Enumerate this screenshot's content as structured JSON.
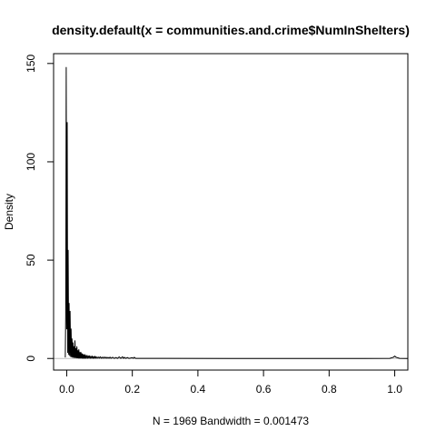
{
  "chart_data": {
    "type": "line",
    "title": "density.default(x = communities.and.crime$NumInShelters)",
    "xlabel": "N = 1969   Bandwidth = 0.001473",
    "ylabel": "Density",
    "xlim": [
      -0.04,
      1.04
    ],
    "ylim": [
      -5.9,
      155.0
    ],
    "x_ticks": [
      {
        "value": 0.0,
        "label": "0.0"
      },
      {
        "value": 0.2,
        "label": "0.2"
      },
      {
        "value": 0.4,
        "label": "0.4"
      },
      {
        "value": 0.6,
        "label": "0.6"
      },
      {
        "value": 0.8,
        "label": "0.8"
      },
      {
        "value": 1.0,
        "label": "1.0"
      }
    ],
    "y_ticks": [
      {
        "value": 0,
        "label": "0"
      },
      {
        "value": 50,
        "label": "50"
      },
      {
        "value": 100,
        "label": "100"
      },
      {
        "value": 150,
        "label": "150"
      }
    ],
    "baseline": 0,
    "baseline_color": "#bebebe",
    "line_color": "#000000",
    "grid": false,
    "legend": "none",
    "series": [
      {
        "x": [
          -0.0044,
          -0.003,
          -0.0015,
          0.0,
          0.0015,
          0.003,
          0.0044,
          0.006,
          0.0073,
          0.009,
          0.0103,
          0.012,
          0.0133,
          0.015,
          0.0162,
          0.018,
          0.0191,
          0.021,
          0.0221,
          0.024,
          0.025,
          0.027,
          0.028,
          0.03,
          0.031,
          0.033,
          0.034,
          0.036,
          0.037,
          0.039,
          0.04,
          0.042,
          0.043,
          0.045,
          0.046,
          0.048,
          0.049,
          0.051,
          0.052,
          0.054,
          0.055,
          0.057,
          0.058,
          0.06,
          0.062,
          0.064,
          0.066,
          0.068,
          0.07,
          0.072,
          0.074,
          0.076,
          0.078,
          0.08,
          0.082,
          0.084,
          0.086,
          0.088,
          0.09,
          0.093,
          0.096,
          0.099,
          0.102,
          0.105,
          0.108,
          0.111,
          0.114,
          0.117,
          0.12,
          0.123,
          0.126,
          0.129,
          0.132,
          0.135,
          0.14,
          0.145,
          0.15,
          0.155,
          0.16,
          0.165,
          0.17,
          0.173,
          0.176,
          0.18,
          0.185,
          0.19,
          0.2,
          0.203,
          0.206,
          0.21,
          0.3,
          0.5,
          0.7,
          0.9,
          0.985,
          0.9956,
          1.0,
          1.0044,
          1.015,
          1.04
        ],
        "y": [
          0.5,
          22,
          148,
          15,
          120,
          3,
          55,
          2,
          28,
          1.5,
          24,
          1,
          15,
          0.8,
          10,
          0.6,
          8,
          0.5,
          6,
          0.4,
          9,
          0.4,
          5,
          0.3,
          6,
          0.3,
          4,
          0.2,
          4.5,
          0.2,
          3,
          0.2,
          3.2,
          0.2,
          2.5,
          0.1,
          2.2,
          0.1,
          1.8,
          0.1,
          2,
          0.1,
          1.5,
          0.1,
          1.6,
          0.1,
          1.3,
          0.1,
          1.4,
          0.1,
          1.1,
          0.1,
          1.2,
          0.1,
          1.0,
          0.1,
          1.1,
          0.1,
          0.9,
          0.1,
          0.8,
          0.1,
          0.9,
          0.1,
          0.7,
          0.1,
          0.8,
          0.1,
          0.7,
          0.1,
          0.6,
          0.1,
          0.7,
          0.1,
          0.6,
          0.05,
          0.5,
          0.05,
          0.8,
          0.05,
          0.9,
          0.05,
          0.6,
          0.05,
          0.5,
          0.05,
          0.4,
          0.05,
          0.6,
          0.05,
          0.05,
          0.02,
          0.02,
          0.02,
          0.05,
          0.6,
          1.2,
          0.6,
          0.05,
          0.0
        ]
      }
    ]
  }
}
